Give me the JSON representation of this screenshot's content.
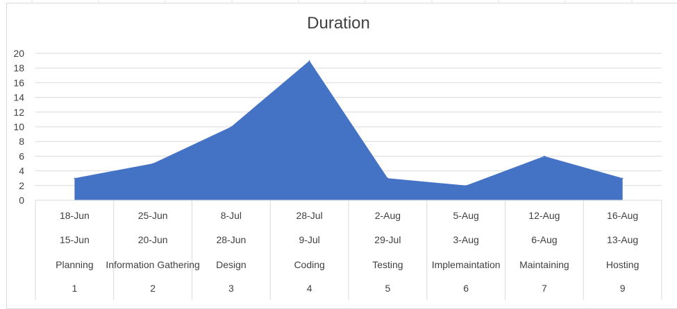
{
  "chart_data": {
    "type": "area",
    "title": "Duration",
    "ylim": [
      0,
      20
    ],
    "y_ticks": [
      0,
      2,
      4,
      6,
      8,
      10,
      12,
      14,
      16,
      18,
      20
    ],
    "grid": true,
    "values": [
      3,
      5,
      10,
      19,
      3,
      2,
      6,
      3
    ],
    "category_rows": [
      [
        "18-Jun",
        "25-Jun",
        "8-Jul",
        "28-Jul",
        "2-Aug",
        "5-Aug",
        "12-Aug",
        "16-Aug"
      ],
      [
        "15-Jun",
        "20-Jun",
        "28-Jun",
        "9-Jul",
        "29-Jul",
        "3-Aug",
        "6-Aug",
        "13-Aug"
      ],
      [
        "Planning",
        "Information Gathering",
        "Design",
        "Coding",
        "Testing",
        "Implemaintation",
        "Maintaining",
        "Hosting"
      ],
      [
        "1",
        "2",
        "3",
        "4",
        "5",
        "6",
        "7",
        "9"
      ]
    ],
    "series_color": "#4472c4"
  }
}
